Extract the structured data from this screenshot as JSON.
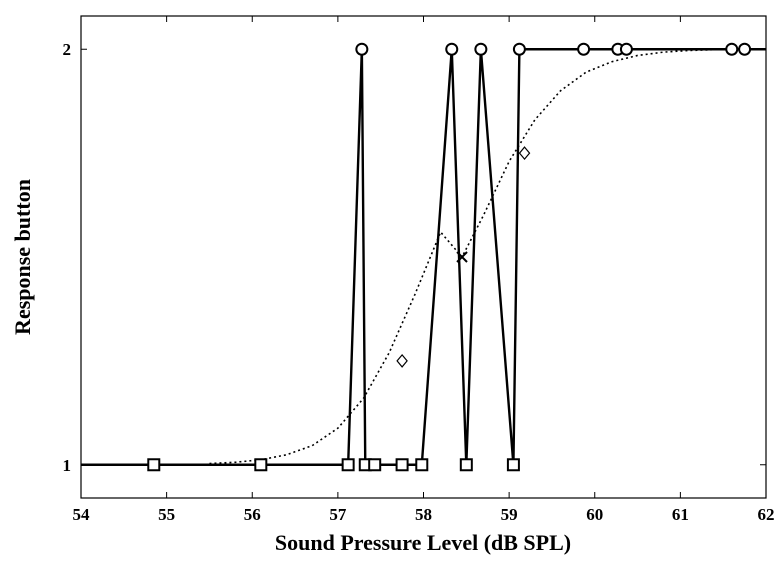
{
  "chart_data": {
    "type": "line",
    "xlabel": "Sound Pressure Level (dB  SPL)",
    "ylabel": "Response button",
    "xlim": [
      54,
      62
    ],
    "ylim": [
      0.92,
      2.08
    ],
    "xticks": [
      54,
      55,
      56,
      57,
      58,
      59,
      60,
      61,
      62
    ],
    "yticks": [
      1,
      2
    ],
    "grid": false,
    "series": [
      {
        "style": "solid-line",
        "color": "#000000",
        "x": [
          54.0,
          54.85,
          56.1,
          57.12,
          57.28,
          57.32,
          57.43,
          57.75,
          57.98,
          58.33,
          58.5,
          58.67,
          59.05,
          59.12,
          59.87,
          60.27,
          60.37,
          61.6,
          61.75,
          62.0
        ],
        "y": [
          1,
          1,
          1,
          1,
          2,
          1,
          1,
          1,
          1,
          2,
          1,
          2,
          1,
          2,
          2,
          2,
          2,
          2,
          2,
          2
        ]
      },
      {
        "style": "circle-markers",
        "color": "#000000",
        "x": [
          57.28,
          58.33,
          58.67,
          59.12,
          59.87,
          60.27,
          60.37,
          61.6,
          61.75
        ],
        "y": [
          2,
          2,
          2,
          2,
          2,
          2,
          2,
          2,
          2
        ]
      },
      {
        "style": "square-markers",
        "color": "#000000",
        "x": [
          54.85,
          56.1,
          57.12,
          57.32,
          57.43,
          57.75,
          57.98,
          58.5,
          59.05
        ],
        "y": [
          1,
          1,
          1,
          1,
          1,
          1,
          1,
          1,
          1
        ]
      },
      {
        "style": "dotted-curve",
        "color": "#000000",
        "x": [
          55.5,
          55.8,
          56.1,
          56.4,
          56.7,
          57.0,
          57.3,
          57.6,
          57.9,
          58.2,
          58.45,
          58.7,
          59.0,
          59.3,
          59.6,
          59.9,
          60.2,
          60.5,
          60.8,
          61.1,
          61.4,
          61.7,
          62.0
        ],
        "y": [
          1.003,
          1.006,
          1.012,
          1.024,
          1.046,
          1.088,
          1.16,
          1.27,
          1.41,
          1.56,
          1.5,
          1.6,
          1.73,
          1.83,
          1.9,
          1.945,
          1.97,
          1.985,
          1.993,
          1.997,
          1.999,
          2.0,
          2.0
        ]
      },
      {
        "style": "diamond-markers",
        "color": "#000000",
        "x": [
          57.75,
          59.18
        ],
        "y": [
          1.25,
          1.75
        ]
      },
      {
        "style": "x-marker",
        "color": "#000000",
        "x": [
          58.45
        ],
        "y": [
          1.5
        ]
      }
    ]
  }
}
